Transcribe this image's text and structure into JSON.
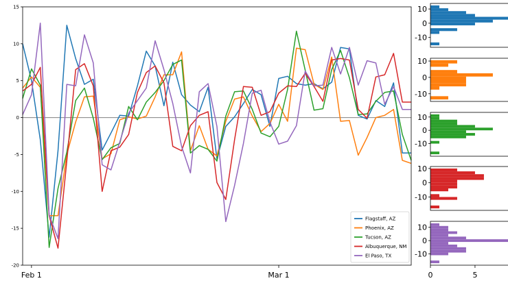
{
  "chart_data": [
    {
      "type": "line",
      "title": "",
      "xlabel": "",
      "ylabel": "",
      "ylim": [
        -20,
        15
      ],
      "y_ticks": [
        -20,
        -15,
        -10,
        -5,
        0,
        5,
        10,
        15
      ],
      "x_tick_labels": [
        {
          "label": "Feb 1",
          "x": 1
        },
        {
          "label": "Mar 1",
          "x": 29
        }
      ],
      "xlim": [
        0,
        44
      ],
      "zero_line": true,
      "legend_position": "lower right",
      "series": [
        {
          "name": "Flagstaff, AZ",
          "color": "#1f77b4",
          "x": [
            0,
            1,
            2,
            3,
            4,
            5,
            6,
            7,
            8,
            9,
            10,
            11,
            12,
            13,
            14,
            15,
            16,
            17,
            18,
            19,
            20,
            21,
            22,
            23,
            24,
            25,
            26,
            27,
            28,
            29,
            30,
            31,
            32,
            33,
            34,
            35,
            36,
            37,
            38,
            39,
            40,
            41,
            42,
            43,
            44
          ],
          "values": [
            10,
            5,
            -3,
            -16.2,
            -4.5,
            12.5,
            8,
            4.5,
            5.2,
            -4.4,
            -2.1,
            0.3,
            0.2,
            4.3,
            9,
            7,
            1.6,
            7.5,
            3.1,
            1.7,
            0.8,
            4.1,
            -5.6,
            -1.2,
            0.1,
            1.9,
            3.8,
            3.1,
            -1.2,
            5.3,
            5.6,
            4.6,
            4.4,
            4.6,
            3.9,
            4.8,
            9.5,
            9.3,
            0.3,
            -0.2,
            2.3,
            1.5,
            4.7,
            -4.8,
            -4.8
          ]
        },
        {
          "name": "Phoenix, AZ",
          "color": "#ff7f0e",
          "x": [
            0,
            1,
            2,
            3,
            4,
            5,
            6,
            7,
            8,
            9,
            10,
            11,
            12,
            13,
            14,
            15,
            16,
            17,
            18,
            19,
            20,
            21,
            22,
            23,
            24,
            25,
            26,
            27,
            28,
            29,
            30,
            31,
            32,
            33,
            34,
            35,
            36,
            37,
            38,
            39,
            40,
            41,
            42,
            43,
            44
          ],
          "values": [
            4,
            5.5,
            4.1,
            -13.3,
            -13.3,
            -5,
            -0.6,
            2.8,
            2.9,
            -5.6,
            -4.9,
            -0.3,
            0.1,
            -0.2,
            0.2,
            2.8,
            5.8,
            5.8,
            8.9,
            -4.5,
            -1.1,
            -4.3,
            -5.2,
            -0.5,
            2.5,
            2.8,
            0.2,
            -1.9,
            -0.8,
            1.8,
            -0.5,
            9.4,
            9.2,
            4.5,
            3.8,
            8.2,
            -0.5,
            -0.4,
            -5.1,
            -2.7,
            0,
            0.3,
            1.1,
            -5.8,
            -6.2
          ]
        },
        {
          "name": "Tucson, AZ",
          "color": "#2ca02c",
          "x": [
            0,
            1,
            2,
            3,
            4,
            5,
            6,
            7,
            8,
            9,
            10,
            11,
            12,
            13,
            14,
            15,
            16,
            17,
            18,
            19,
            20,
            21,
            22,
            23,
            24,
            25,
            26,
            27,
            28,
            29,
            30,
            31,
            32,
            33,
            34,
            35,
            36,
            37,
            38,
            39,
            40,
            41,
            42,
            43,
            44
          ],
          "values": [
            2.6,
            6.6,
            4.4,
            -17.6,
            -9.6,
            -4.7,
            2.3,
            4,
            -0.1,
            -5.7,
            -4.1,
            -3.5,
            1.5,
            -0.3,
            2.1,
            3.4,
            5,
            7.2,
            7.8,
            -4.8,
            -3.8,
            -4.3,
            -5.9,
            0.2,
            3.5,
            3.6,
            1.1,
            -2.1,
            -2.6,
            -1.2,
            3.8,
            11.7,
            6.4,
            1,
            1.2,
            6.5,
            9.1,
            5.4,
            0.4,
            0.5,
            2.2,
            3.4,
            3.6,
            -2.3,
            -5.8
          ]
        },
        {
          "name": "Albuquerque, NM",
          "color": "#d62728",
          "x": [
            0,
            1,
            2,
            3,
            4,
            5,
            6,
            7,
            8,
            9,
            10,
            11,
            12,
            13,
            14,
            15,
            16,
            17,
            18,
            19,
            20,
            21,
            22,
            23,
            24,
            25,
            26,
            27,
            28,
            29,
            30,
            31,
            32,
            33,
            34,
            35,
            36,
            37,
            38,
            39,
            40,
            41,
            42,
            43,
            44
          ],
          "values": [
            3.6,
            4.5,
            6.8,
            -13.3,
            -17.7,
            -5.9,
            6.5,
            7.3,
            4.3,
            -10,
            -4.5,
            -4,
            -2.3,
            3.4,
            6.1,
            7,
            4.7,
            -3.9,
            -4.5,
            -1.1,
            0.3,
            0.8,
            -8.8,
            -11.1,
            -3,
            4.2,
            4.1,
            0.3,
            0.8,
            3.3,
            4.3,
            4.2,
            6,
            4.2,
            2.2,
            7.8,
            8,
            7.8,
            1.1,
            -0.1,
            5.5,
            5.8,
            8.7,
            2.1,
            2.1
          ]
        },
        {
          "name": "El Paso, TX",
          "color": "#9467bd",
          "x": [
            0,
            1,
            2,
            3,
            4,
            5,
            6,
            7,
            8,
            9,
            10,
            11,
            12,
            13,
            14,
            15,
            16,
            17,
            18,
            19,
            20,
            21,
            22,
            23,
            24,
            25,
            26,
            27,
            28,
            29,
            30,
            31,
            32,
            33,
            34,
            35,
            36,
            37,
            38,
            39,
            40,
            41,
            42,
            43,
            44
          ],
          "values": [
            0.4,
            3.1,
            12.8,
            -13.2,
            -16.4,
            4.5,
            4.3,
            11.2,
            7.4,
            -6.4,
            -7.1,
            -3.3,
            0.6,
            2.3,
            4,
            10.4,
            6.5,
            1.9,
            -3.9,
            -7.5,
            3.5,
            4.6,
            -1.2,
            -14.1,
            -9.2,
            -3.5,
            3.3,
            3.7,
            -0.6,
            -3.6,
            -3.2,
            -1.1,
            6.3,
            4.3,
            4.4,
            9.5,
            5.9,
            9.5,
            4.4,
            7.7,
            7.4,
            1.8,
            4.2,
            1.1,
            1.1
          ]
        }
      ]
    },
    {
      "type": "histogram",
      "orientation": "horizontal",
      "series": "Flagstaff, AZ",
      "color": "#1f77b4",
      "bins": [
        -15.5,
        -13.5,
        -11.5,
        -9.5,
        -7.5,
        -5.5,
        -3.5,
        -1.5,
        0.5,
        2.5,
        4.5,
        6.5,
        8.5,
        10.5,
        12.5
      ],
      "counts": [
        1,
        0,
        0,
        0,
        1,
        3,
        0,
        5,
        7,
        9,
        5,
        4,
        2,
        1
      ],
      "y_ticks": [
        -10,
        0,
        10
      ]
    },
    {
      "type": "histogram",
      "orientation": "horizontal",
      "series": "Phoenix, AZ",
      "color": "#ff7f0e",
      "bins": [
        -13.5,
        -11.5,
        -9.5,
        -7.5,
        -5.5,
        -3.5,
        -1.5,
        0.5,
        2.5,
        4.5,
        6.5,
        8.5,
        10.5
      ],
      "counts": [
        2,
        0,
        0,
        1,
        4,
        4,
        4,
        7,
        3,
        0,
        2,
        3
      ],
      "y_ticks": [
        -10,
        0,
        10
      ]
    },
    {
      "type": "histogram",
      "orientation": "horizontal",
      "series": "Tucson, AZ",
      "color": "#2ca02c",
      "bins": [
        -18,
        -16,
        -14,
        -12,
        -10,
        -8,
        -6,
        -4,
        -2,
        0,
        2,
        4,
        6,
        8,
        10,
        12
      ],
      "counts": [
        1,
        0,
        0,
        0,
        1,
        0,
        4,
        5,
        4,
        7,
        5,
        3,
        3,
        1,
        1
      ],
      "y_ticks": [
        -10,
        0,
        10
      ]
    },
    {
      "type": "histogram",
      "orientation": "horizontal",
      "series": "Albuquerque, NM",
      "color": "#d62728",
      "bins": [
        -18,
        -16,
        -14,
        -12,
        -10,
        -8,
        -6,
        -4,
        -2,
        0,
        2,
        4,
        6,
        8,
        10
      ],
      "counts": [
        1,
        0,
        0,
        3,
        1,
        0,
        2,
        3,
        3,
        3,
        6,
        6,
        5,
        3
      ],
      "y_ticks": [
        -10,
        0,
        10
      ]
    },
    {
      "type": "histogram",
      "orientation": "horizontal",
      "series": "El Paso, TX",
      "color": "#9467bd",
      "bins": [
        -17,
        -15,
        -13,
        -11,
        -9,
        -7,
        -5,
        -3,
        -1,
        1,
        3,
        5,
        7,
        9,
        11,
        13
      ],
      "counts": [
        1,
        0,
        0,
        2,
        4,
        4,
        3,
        2,
        9,
        4,
        2,
        3,
        2,
        2,
        1
      ],
      "y_ticks": [
        -10,
        0,
        10
      ],
      "x_ticks": [
        0,
        5
      ]
    }
  ]
}
